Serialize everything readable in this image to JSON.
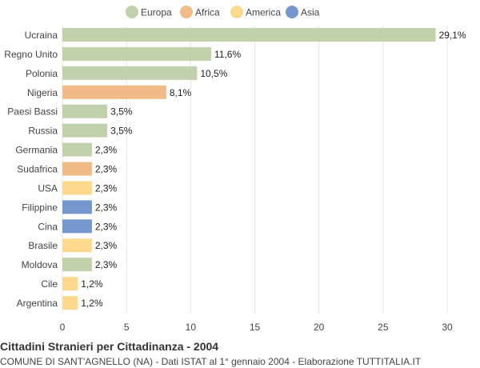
{
  "chart_data": {
    "type": "bar",
    "orientation": "horizontal",
    "title": "Cittadini Stranieri per Cittadinanza - 2004",
    "subtitle": "COMUNE DI SANT'AGNELLO (NA) - Dati ISTAT al 1° gennaio 2004 - Elaborazione TUTTITALIA.IT",
    "xlim": [
      0,
      30
    ],
    "xticks": [
      0,
      5,
      10,
      15,
      20,
      25,
      30
    ],
    "grid": true,
    "legend_position": "top",
    "legend": [
      {
        "name": "Europa",
        "color": "#c0d1ab"
      },
      {
        "name": "Africa",
        "color": "#f0bb86"
      },
      {
        "name": "America",
        "color": "#fdd98d"
      },
      {
        "name": "Asia",
        "color": "#7697cd"
      }
    ],
    "bars": [
      {
        "category": "Ucraina",
        "value": 29.1,
        "label": "29,1%",
        "group": "Europa"
      },
      {
        "category": "Regno Unito",
        "value": 11.6,
        "label": "11,6%",
        "group": "Europa"
      },
      {
        "category": "Polonia",
        "value": 10.5,
        "label": "10,5%",
        "group": "Europa"
      },
      {
        "category": "Nigeria",
        "value": 8.1,
        "label": "8,1%",
        "group": "Africa"
      },
      {
        "category": "Paesi Bassi",
        "value": 3.5,
        "label": "3,5%",
        "group": "Europa"
      },
      {
        "category": "Russia",
        "value": 3.5,
        "label": "3,5%",
        "group": "Europa"
      },
      {
        "category": "Germania",
        "value": 2.3,
        "label": "2,3%",
        "group": "Europa"
      },
      {
        "category": "Sudafrica",
        "value": 2.3,
        "label": "2,3%",
        "group": "Africa"
      },
      {
        "category": "USA",
        "value": 2.3,
        "label": "2,3%",
        "group": "America"
      },
      {
        "category": "Filippine",
        "value": 2.3,
        "label": "2,3%",
        "group": "Asia"
      },
      {
        "category": "Cina",
        "value": 2.3,
        "label": "2,3%",
        "group": "Asia"
      },
      {
        "category": "Brasile",
        "value": 2.3,
        "label": "2,3%",
        "group": "America"
      },
      {
        "category": "Moldova",
        "value": 2.3,
        "label": "2,3%",
        "group": "Europa"
      },
      {
        "category": "Cile",
        "value": 1.2,
        "label": "1,2%",
        "group": "America"
      },
      {
        "category": "Argentina",
        "value": 1.2,
        "label": "1,2%",
        "group": "America"
      }
    ]
  }
}
